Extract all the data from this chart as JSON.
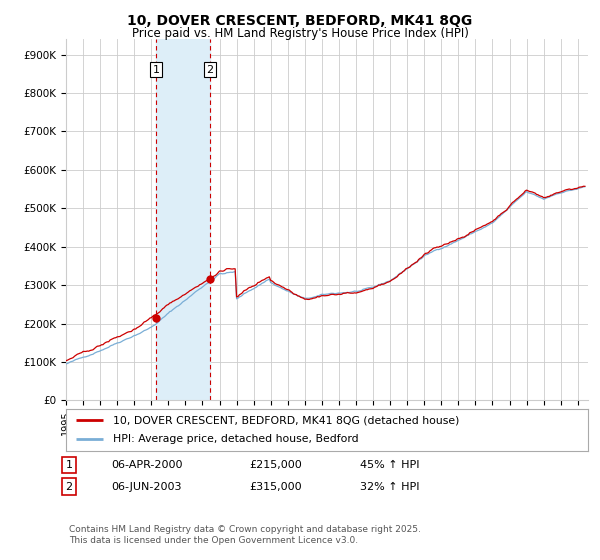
{
  "title": "10, DOVER CRESCENT, BEDFORD, MK41 8QG",
  "subtitle": "Price paid vs. HM Land Registry's House Price Index (HPI)",
  "ytick_labels": [
    "£0",
    "£100K",
    "£200K",
    "£300K",
    "£400K",
    "£500K",
    "£600K",
    "£700K",
    "£800K",
    "£900K"
  ],
  "yticks": [
    0,
    100000,
    200000,
    300000,
    400000,
    500000,
    600000,
    700000,
    800000,
    900000
  ],
  "ylim": [
    0,
    940000
  ],
  "xlim_left": 1995.0,
  "xlim_right": 2025.6,
  "red_color": "#cc0000",
  "blue_color": "#7aaed6",
  "shade_color": "#ddeef8",
  "grid_color": "#cccccc",
  "background_color": "#ffffff",
  "dashed_line_color": "#cc0000",
  "legend_label_red": "10, DOVER CRESCENT, BEDFORD, MK41 8QG (detached house)",
  "legend_label_blue": "HPI: Average price, detached house, Bedford",
  "transaction_1_date": "06-APR-2000",
  "transaction_1_price": "£215,000",
  "transaction_1_hpi": "45% ↑ HPI",
  "transaction_1_x": 2000.27,
  "transaction_1_y": 215000,
  "transaction_2_date": "06-JUN-2003",
  "transaction_2_price": "£315,000",
  "transaction_2_hpi": "32% ↑ HPI",
  "transaction_2_x": 2003.43,
  "transaction_2_y": 315000,
  "shade_x1": 2000.27,
  "shade_x2": 2003.43,
  "footer": "Contains HM Land Registry data © Crown copyright and database right 2025.\nThis data is licensed under the Open Government Licence v3.0."
}
